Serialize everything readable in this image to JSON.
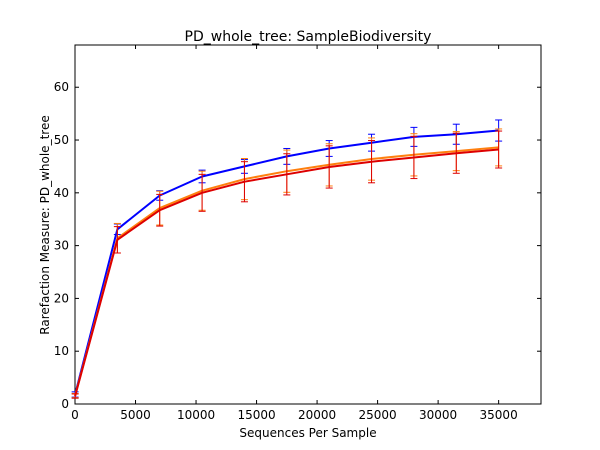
{
  "chart_data": {
    "type": "line",
    "title": "PD_whole_tree: SampleBiodiversity",
    "xlabel": "Sequences Per Sample",
    "ylabel": "Rarefaction Measure: PD_whole_tree",
    "xlim": [
      0,
      38500
    ],
    "ylim": [
      0,
      68
    ],
    "grid": false,
    "x_ticks": [
      0,
      5000,
      10000,
      15000,
      20000,
      25000,
      30000,
      35000
    ],
    "y_ticks": [
      0,
      10,
      20,
      30,
      40,
      50,
      60
    ],
    "x": [
      10,
      3500,
      7000,
      10500,
      14000,
      17500,
      21000,
      24500,
      28000,
      31500,
      35000
    ],
    "series": [
      {
        "color": "#0000ff",
        "values": [
          1.8,
          33.1,
          39.5,
          43.1,
          45.0,
          46.9,
          48.4,
          49.5,
          50.6,
          51.1,
          51.8
        ],
        "errors": [
          0.5,
          1.0,
          0.9,
          1.2,
          1.3,
          1.5,
          1.5,
          1.6,
          1.8,
          1.9,
          2.0
        ]
      },
      {
        "color": "#ff7f0e",
        "values": [
          1.6,
          31.4,
          37.1,
          40.4,
          42.6,
          44.1,
          45.3,
          46.4,
          47.2,
          47.9,
          48.6
        ],
        "errors": [
          0.4,
          2.8,
          3.2,
          3.7,
          3.9,
          4.0,
          4.0,
          4.0,
          4.0,
          3.7,
          3.5
        ]
      },
      {
        "color": "#dd0000",
        "values": [
          1.5,
          31.1,
          36.7,
          40.0,
          42.1,
          43.5,
          44.9,
          45.9,
          46.7,
          47.5,
          48.2
        ],
        "errors": [
          0.4,
          2.5,
          3.0,
          3.5,
          3.8,
          3.9,
          4.0,
          4.0,
          4.0,
          3.8,
          3.5
        ]
      }
    ]
  }
}
